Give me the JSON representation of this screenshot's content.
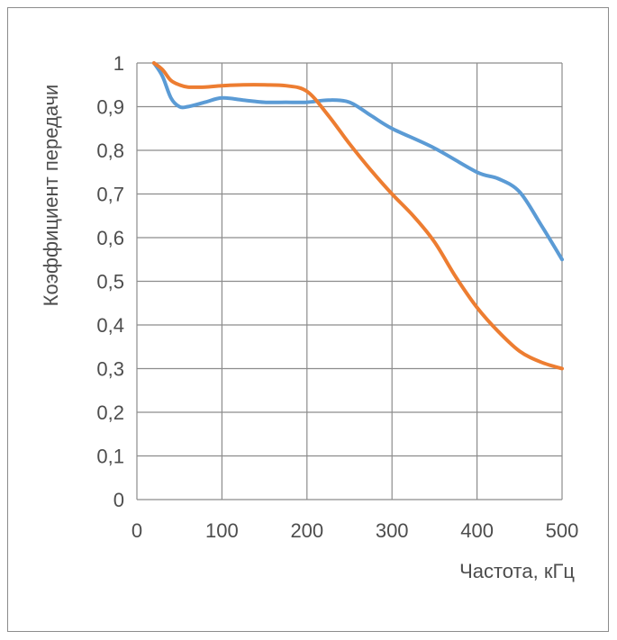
{
  "chart_data": {
    "type": "line",
    "title": "",
    "xlabel": "Частота, кГц",
    "ylabel": "Коэффициент передачи",
    "xlim": [
      0,
      500
    ],
    "ylim": [
      0,
      1
    ],
    "x_ticks": [
      0,
      100,
      200,
      300,
      400,
      500
    ],
    "x_tick_labels": [
      "0",
      "100",
      "200",
      "300",
      "400",
      "500"
    ],
    "y_ticks": [
      0,
      0.1,
      0.2,
      0.3,
      0.4,
      0.5,
      0.6,
      0.7,
      0.8,
      0.9,
      1
    ],
    "y_tick_labels": [
      "0",
      "0,1",
      "0,2",
      "0,3",
      "0,4",
      "0,5",
      "0,6",
      "0,7",
      "0,8",
      "0,9",
      "1"
    ],
    "grid": true,
    "legend": "none",
    "series": [
      {
        "color": "#5b9bd5",
        "x": [
          20,
          30,
          40,
          50,
          60,
          80,
          100,
          125,
          150,
          175,
          200,
          225,
          250,
          275,
          300,
          350,
          400,
          425,
          450,
          475,
          500
        ],
        "y": [
          1.0,
          0.97,
          0.92,
          0.9,
          0.9,
          0.91,
          0.92,
          0.915,
          0.91,
          0.91,
          0.91,
          0.915,
          0.91,
          0.88,
          0.85,
          0.805,
          0.75,
          0.735,
          0.705,
          0.63,
          0.55
        ]
      },
      {
        "color": "#ed7d31",
        "x": [
          20,
          30,
          40,
          50,
          60,
          80,
          100,
          125,
          150,
          175,
          200,
          225,
          250,
          275,
          300,
          325,
          350,
          375,
          400,
          425,
          450,
          475,
          500
        ],
        "y": [
          1.0,
          0.985,
          0.96,
          0.95,
          0.945,
          0.945,
          0.948,
          0.95,
          0.95,
          0.948,
          0.935,
          0.88,
          0.815,
          0.755,
          0.7,
          0.65,
          0.59,
          0.51,
          0.44,
          0.385,
          0.34,
          0.315,
          0.3
        ]
      }
    ]
  }
}
